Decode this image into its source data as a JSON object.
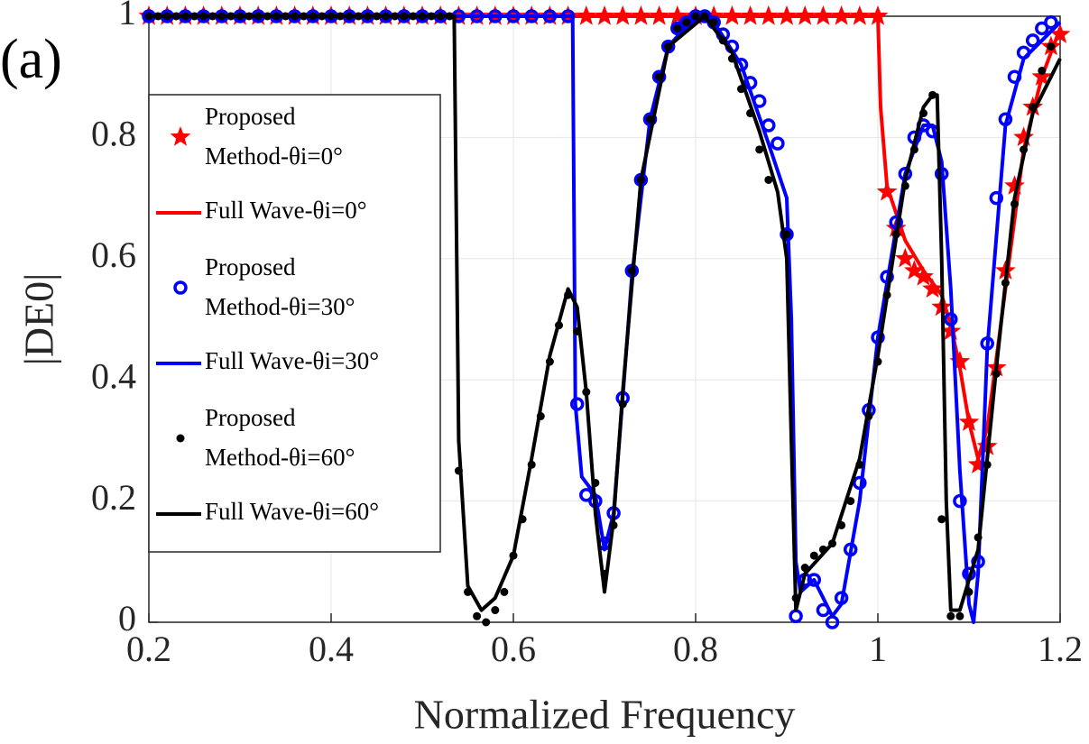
{
  "chart_data": {
    "type": "line",
    "annotation": "(a)",
    "xlabel": "Normalized Frequency",
    "ylabel": "|DE0|",
    "xlim": [
      0.2,
      1.2
    ],
    "xticks": [
      0.2,
      0.4,
      0.6,
      0.8,
      1,
      1.2
    ],
    "ylim": [
      0,
      1
    ],
    "yticks": [
      0,
      0.2,
      0.4,
      0.6,
      0.8,
      1
    ],
    "grid": true,
    "legend": "northwest",
    "series": [
      {
        "name": "Proposed Method-θi=0°",
        "color": "#ff0000",
        "style": "pentagram",
        "x": [
          0.2,
          0.22,
          0.24,
          0.26,
          0.28,
          0.3,
          0.32,
          0.34,
          0.36,
          0.38,
          0.4,
          0.42,
          0.44,
          0.46,
          0.48,
          0.5,
          0.52,
          0.54,
          0.56,
          0.58,
          0.6,
          0.62,
          0.64,
          0.66,
          0.68,
          0.7,
          0.72,
          0.74,
          0.76,
          0.78,
          0.8,
          0.82,
          0.84,
          0.86,
          0.88,
          0.9,
          0.92,
          0.94,
          0.96,
          0.98,
          1.0,
          1.01,
          1.02,
          1.03,
          1.04,
          1.05,
          1.06,
          1.07,
          1.08,
          1.09,
          1.1,
          1.11,
          1.12,
          1.13,
          1.14,
          1.15,
          1.16,
          1.17,
          1.18,
          1.19,
          1.2
        ],
        "values": [
          1,
          1,
          1,
          1,
          1,
          1,
          1,
          1,
          1,
          1,
          1,
          1,
          1,
          1,
          1,
          1,
          1,
          1,
          1,
          1,
          1,
          1,
          1,
          1,
          1,
          1,
          1,
          1,
          1,
          1,
          1,
          1,
          1,
          1,
          1,
          1,
          1,
          1,
          1,
          1,
          1,
          0.71,
          0.65,
          0.6,
          0.58,
          0.57,
          0.55,
          0.52,
          0.48,
          0.43,
          0.33,
          0.26,
          0.29,
          0.42,
          0.58,
          0.72,
          0.8,
          0.85,
          0.9,
          0.95,
          0.97
        ]
      },
      {
        "name": "Full Wave-θi=0°",
        "color": "#ff0000",
        "style": "-",
        "x": [
          0.2,
          0.995,
          1.0,
          1.003,
          1.01,
          1.03,
          1.05,
          1.07,
          1.08,
          1.09,
          1.1,
          1.11,
          1.12,
          1.14,
          1.16,
          1.18,
          1.2
        ],
        "values": [
          1,
          1,
          1,
          0.85,
          0.72,
          0.63,
          0.58,
          0.54,
          0.49,
          0.42,
          0.33,
          0.27,
          0.32,
          0.55,
          0.78,
          0.9,
          0.98
        ]
      },
      {
        "name": "Proposed Method-θi=30°",
        "color": "#0000ff",
        "style": "o",
        "x": [
          0.2,
          0.22,
          0.24,
          0.26,
          0.28,
          0.3,
          0.32,
          0.34,
          0.36,
          0.38,
          0.4,
          0.42,
          0.44,
          0.46,
          0.48,
          0.5,
          0.52,
          0.54,
          0.56,
          0.58,
          0.6,
          0.62,
          0.64,
          0.66,
          0.67,
          0.68,
          0.69,
          0.7,
          0.71,
          0.72,
          0.73,
          0.74,
          0.75,
          0.76,
          0.77,
          0.78,
          0.79,
          0.8,
          0.81,
          0.82,
          0.83,
          0.84,
          0.85,
          0.86,
          0.87,
          0.88,
          0.89,
          0.9,
          0.91,
          0.92,
          0.93,
          0.94,
          0.95,
          0.96,
          0.97,
          0.98,
          0.99,
          1.0,
          1.01,
          1.02,
          1.03,
          1.04,
          1.05,
          1.06,
          1.07,
          1.08,
          1.09,
          1.1,
          1.11,
          1.12,
          1.13,
          1.14,
          1.15,
          1.16,
          1.17,
          1.18,
          1.19
        ],
        "values": [
          1,
          1,
          1,
          1,
          1,
          1,
          1,
          1,
          1,
          1,
          1,
          1,
          1,
          1,
          1,
          1,
          1,
          1,
          1,
          1,
          1,
          1,
          1,
          1,
          0.36,
          0.21,
          0.2,
          0.13,
          0.18,
          0.37,
          0.58,
          0.73,
          0.83,
          0.9,
          0.95,
          0.98,
          0.99,
          1,
          1,
          0.99,
          0.97,
          0.95,
          0.92,
          0.89,
          0.86,
          0.82,
          0.79,
          0.64,
          0.01,
          0.07,
          0.07,
          0.02,
          0,
          0.04,
          0.12,
          0.23,
          0.35,
          0.47,
          0.57,
          0.66,
          0.74,
          0.8,
          0.82,
          0.81,
          0.74,
          0.5,
          0.2,
          0.08,
          0.1,
          0.46,
          0.7,
          0.83,
          0.9,
          0.94,
          0.96,
          0.98,
          0.99
        ]
      },
      {
        "name": "Full Wave-θi=30°",
        "color": "#0000ff",
        "style": "-",
        "x": [
          0.2,
          0.665,
          0.668,
          0.675,
          0.69,
          0.7,
          0.71,
          0.72,
          0.73,
          0.75,
          0.77,
          0.8,
          0.82,
          0.85,
          0.88,
          0.9,
          0.905,
          0.91,
          0.915,
          0.93,
          0.95,
          0.96,
          0.98,
          1.0,
          1.03,
          1.05,
          1.06,
          1.07,
          1.08,
          1.09,
          1.1,
          1.105,
          1.11,
          1.12,
          1.14,
          1.16,
          1.2
        ],
        "values": [
          1,
          1,
          0.36,
          0.24,
          0.21,
          0.12,
          0.18,
          0.37,
          0.57,
          0.83,
          0.95,
          1,
          0.99,
          0.92,
          0.79,
          0.7,
          0.5,
          0.1,
          0.05,
          0.07,
          0.01,
          0.03,
          0.2,
          0.47,
          0.74,
          0.82,
          0.82,
          0.76,
          0.55,
          0.25,
          0.03,
          0,
          0.08,
          0.45,
          0.82,
          0.93,
          0.99
        ]
      },
      {
        "name": "Proposed Method-θi=60°",
        "color": "#000000",
        "style": ".",
        "x": [
          0.2,
          0.21,
          0.22,
          0.23,
          0.24,
          0.25,
          0.26,
          0.27,
          0.28,
          0.29,
          0.3,
          0.31,
          0.32,
          0.33,
          0.34,
          0.35,
          0.36,
          0.37,
          0.38,
          0.39,
          0.4,
          0.41,
          0.42,
          0.43,
          0.44,
          0.45,
          0.46,
          0.47,
          0.48,
          0.49,
          0.5,
          0.51,
          0.52,
          0.53,
          0.54,
          0.55,
          0.56,
          0.57,
          0.58,
          0.59,
          0.6,
          0.61,
          0.62,
          0.63,
          0.64,
          0.65,
          0.66,
          0.67,
          0.68,
          0.69,
          0.7,
          0.71,
          0.72,
          0.73,
          0.74,
          0.75,
          0.76,
          0.77,
          0.78,
          0.79,
          0.8,
          0.81,
          0.82,
          0.83,
          0.84,
          0.85,
          0.86,
          0.87,
          0.88,
          0.9,
          0.91,
          0.92,
          0.93,
          0.94,
          0.95,
          0.96,
          0.97,
          0.98,
          0.99,
          1.0,
          1.01,
          1.02,
          1.03,
          1.04,
          1.05,
          1.06,
          1.07,
          1.08,
          1.09,
          1.1,
          1.11,
          1.12,
          1.13,
          1.14,
          1.15,
          1.16,
          1.17,
          1.18,
          1.19
        ],
        "values": [
          1,
          1,
          1,
          1,
          1,
          1,
          1,
          1,
          1,
          1,
          1,
          1,
          1,
          1,
          1,
          1,
          1,
          1,
          1,
          1,
          1,
          1,
          1,
          1,
          1,
          1,
          1,
          1,
          1,
          1,
          1,
          1,
          1,
          1,
          0.25,
          0.05,
          0.01,
          0,
          0.02,
          0.05,
          0.11,
          0.17,
          0.26,
          0.34,
          0.43,
          0.49,
          0.54,
          0.48,
          0.38,
          0.23,
          0.08,
          0.16,
          0.36,
          0.58,
          0.73,
          0.83,
          0.9,
          0.95,
          0.98,
          0.99,
          1,
          1,
          0.99,
          0.96,
          0.93,
          0.88,
          0.84,
          0.78,
          0.73,
          0.64,
          0.04,
          0.09,
          0.11,
          0.12,
          0.13,
          0.16,
          0.2,
          0.26,
          0.34,
          0.43,
          0.54,
          0.64,
          0.72,
          0.78,
          0.84,
          0.87,
          0.17,
          0.01,
          0.01,
          0.05,
          0.14,
          0.26,
          0.41,
          0.56,
          0.69,
          0.78,
          0.85,
          0.91,
          0.95
        ]
      },
      {
        "name": "Full Wave-θi=60°",
        "color": "#000000",
        "style": "-",
        "x": [
          0.2,
          0.535,
          0.54,
          0.55,
          0.565,
          0.58,
          0.6,
          0.62,
          0.64,
          0.66,
          0.67,
          0.68,
          0.69,
          0.7,
          0.71,
          0.72,
          0.74,
          0.77,
          0.81,
          0.84,
          0.87,
          0.89,
          0.9,
          0.905,
          0.91,
          0.92,
          0.95,
          0.98,
          1.0,
          1.03,
          1.05,
          1.06,
          1.065,
          1.07,
          1.075,
          1.08,
          1.09,
          1.11,
          1.13,
          1.15,
          1.17,
          1.2
        ],
        "values": [
          1,
          1,
          0.3,
          0.06,
          0.02,
          0.04,
          0.11,
          0.27,
          0.44,
          0.55,
          0.52,
          0.38,
          0.18,
          0.05,
          0.17,
          0.38,
          0.73,
          0.95,
          1,
          0.94,
          0.81,
          0.71,
          0.6,
          0.3,
          0.02,
          0.08,
          0.13,
          0.27,
          0.44,
          0.73,
          0.85,
          0.87,
          0.87,
          0.6,
          0.2,
          0.02,
          0.02,
          0.12,
          0.42,
          0.7,
          0.84,
          0.93
        ]
      }
    ]
  }
}
